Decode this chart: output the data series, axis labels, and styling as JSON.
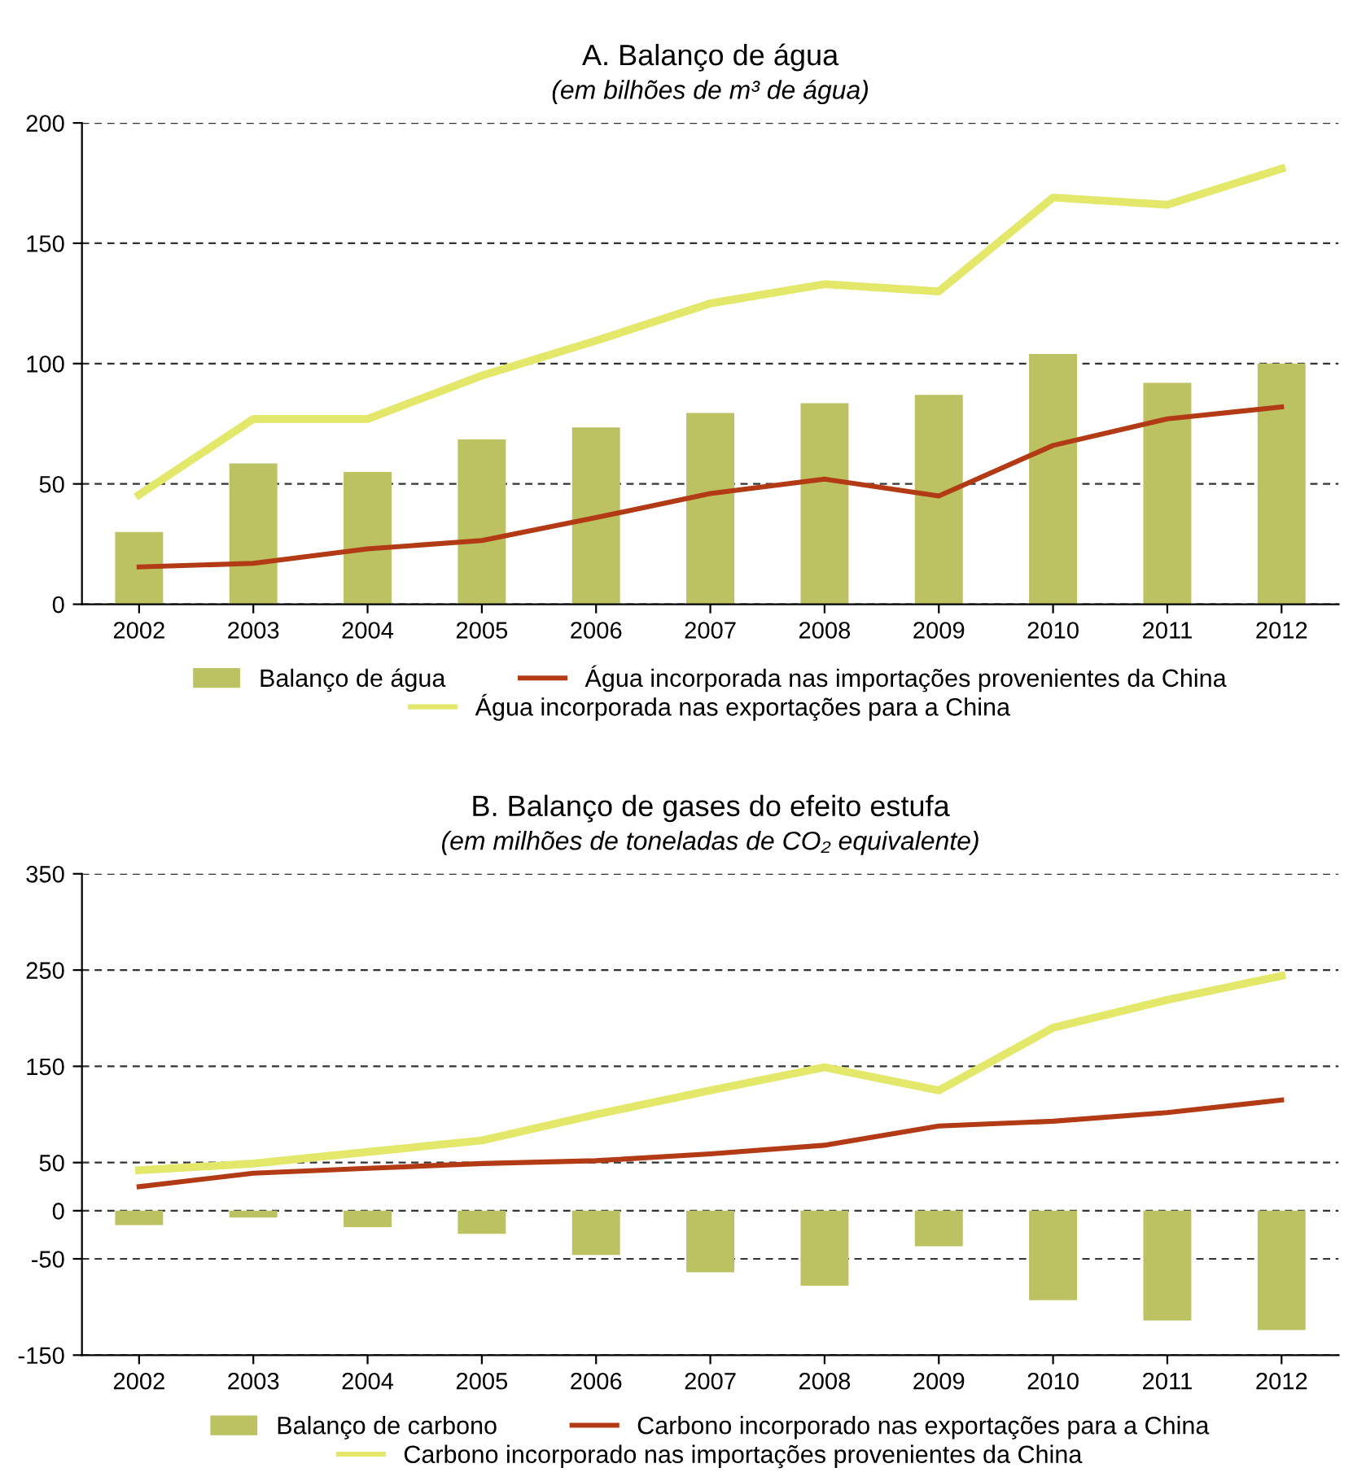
{
  "chart_data": [
    {
      "type": "bar",
      "title": "A. Balanço de água",
      "subtitle": "(em bilhões de m³ de água)",
      "categories": [
        "2002",
        "2003",
        "2004",
        "2005",
        "2006",
        "2007",
        "2008",
        "2009",
        "2010",
        "2011",
        "2012"
      ],
      "series": [
        {
          "name": "Balanço de água",
          "color": "#bcc262",
          "values": [
            30,
            58.5,
            55,
            68.5,
            73.5,
            79.5,
            83.5,
            87,
            104,
            92,
            100
          ]
        },
        {
          "name": "Água incorporada nas importações provenientes da China",
          "type": "line",
          "color": "#b23a15",
          "values": [
            15.5,
            17,
            23,
            26.5,
            36,
            46,
            52,
            45,
            66,
            77,
            82
          ]
        },
        {
          "name": "Água incorporada nas exportações para a China",
          "type": "line",
          "color": "#e3e86a",
          "values": [
            45.5,
            77,
            77,
            95,
            109.5,
            125,
            133,
            130,
            169,
            166,
            181
          ]
        }
      ],
      "ylim": [
        0,
        200
      ],
      "yticks": [
        0,
        50,
        100,
        150,
        200
      ],
      "grid": "y",
      "legend": "bottom"
    },
    {
      "type": "bar",
      "title": "B. Balanço de gases do efeito estufa",
      "subtitle": "(em milhões de toneladas de CO₂ equivalente)",
      "categories": [
        "2002",
        "2003",
        "2004",
        "2005",
        "2006",
        "2007",
        "2008",
        "2009",
        "2010",
        "2011",
        "2012"
      ],
      "series": [
        {
          "name": "Balanço de carbono",
          "color": "#bcc262",
          "values": [
            -15,
            -7,
            -17,
            -24,
            -46,
            -64,
            -78,
            -37,
            -93,
            -114,
            -124
          ]
        },
        {
          "name": "Carbono incorporado nas exportações para a China",
          "type": "line",
          "color": "#b23a15",
          "values": [
            25,
            39,
            44,
            49,
            52,
            59,
            68,
            88,
            93,
            102,
            115
          ]
        },
        {
          "name": "Carbono incorporado nas importações provenientes da China",
          "type": "line",
          "color": "#e3e86a",
          "values": [
            42,
            49,
            61,
            73,
            100,
            125,
            149,
            125,
            190,
            219,
            244
          ]
        }
      ],
      "ylim": [
        -150,
        350
      ],
      "yticks": [
        -150,
        -50,
        0,
        50,
        150,
        250,
        350
      ],
      "grid": "y",
      "legend": "bottom"
    }
  ]
}
